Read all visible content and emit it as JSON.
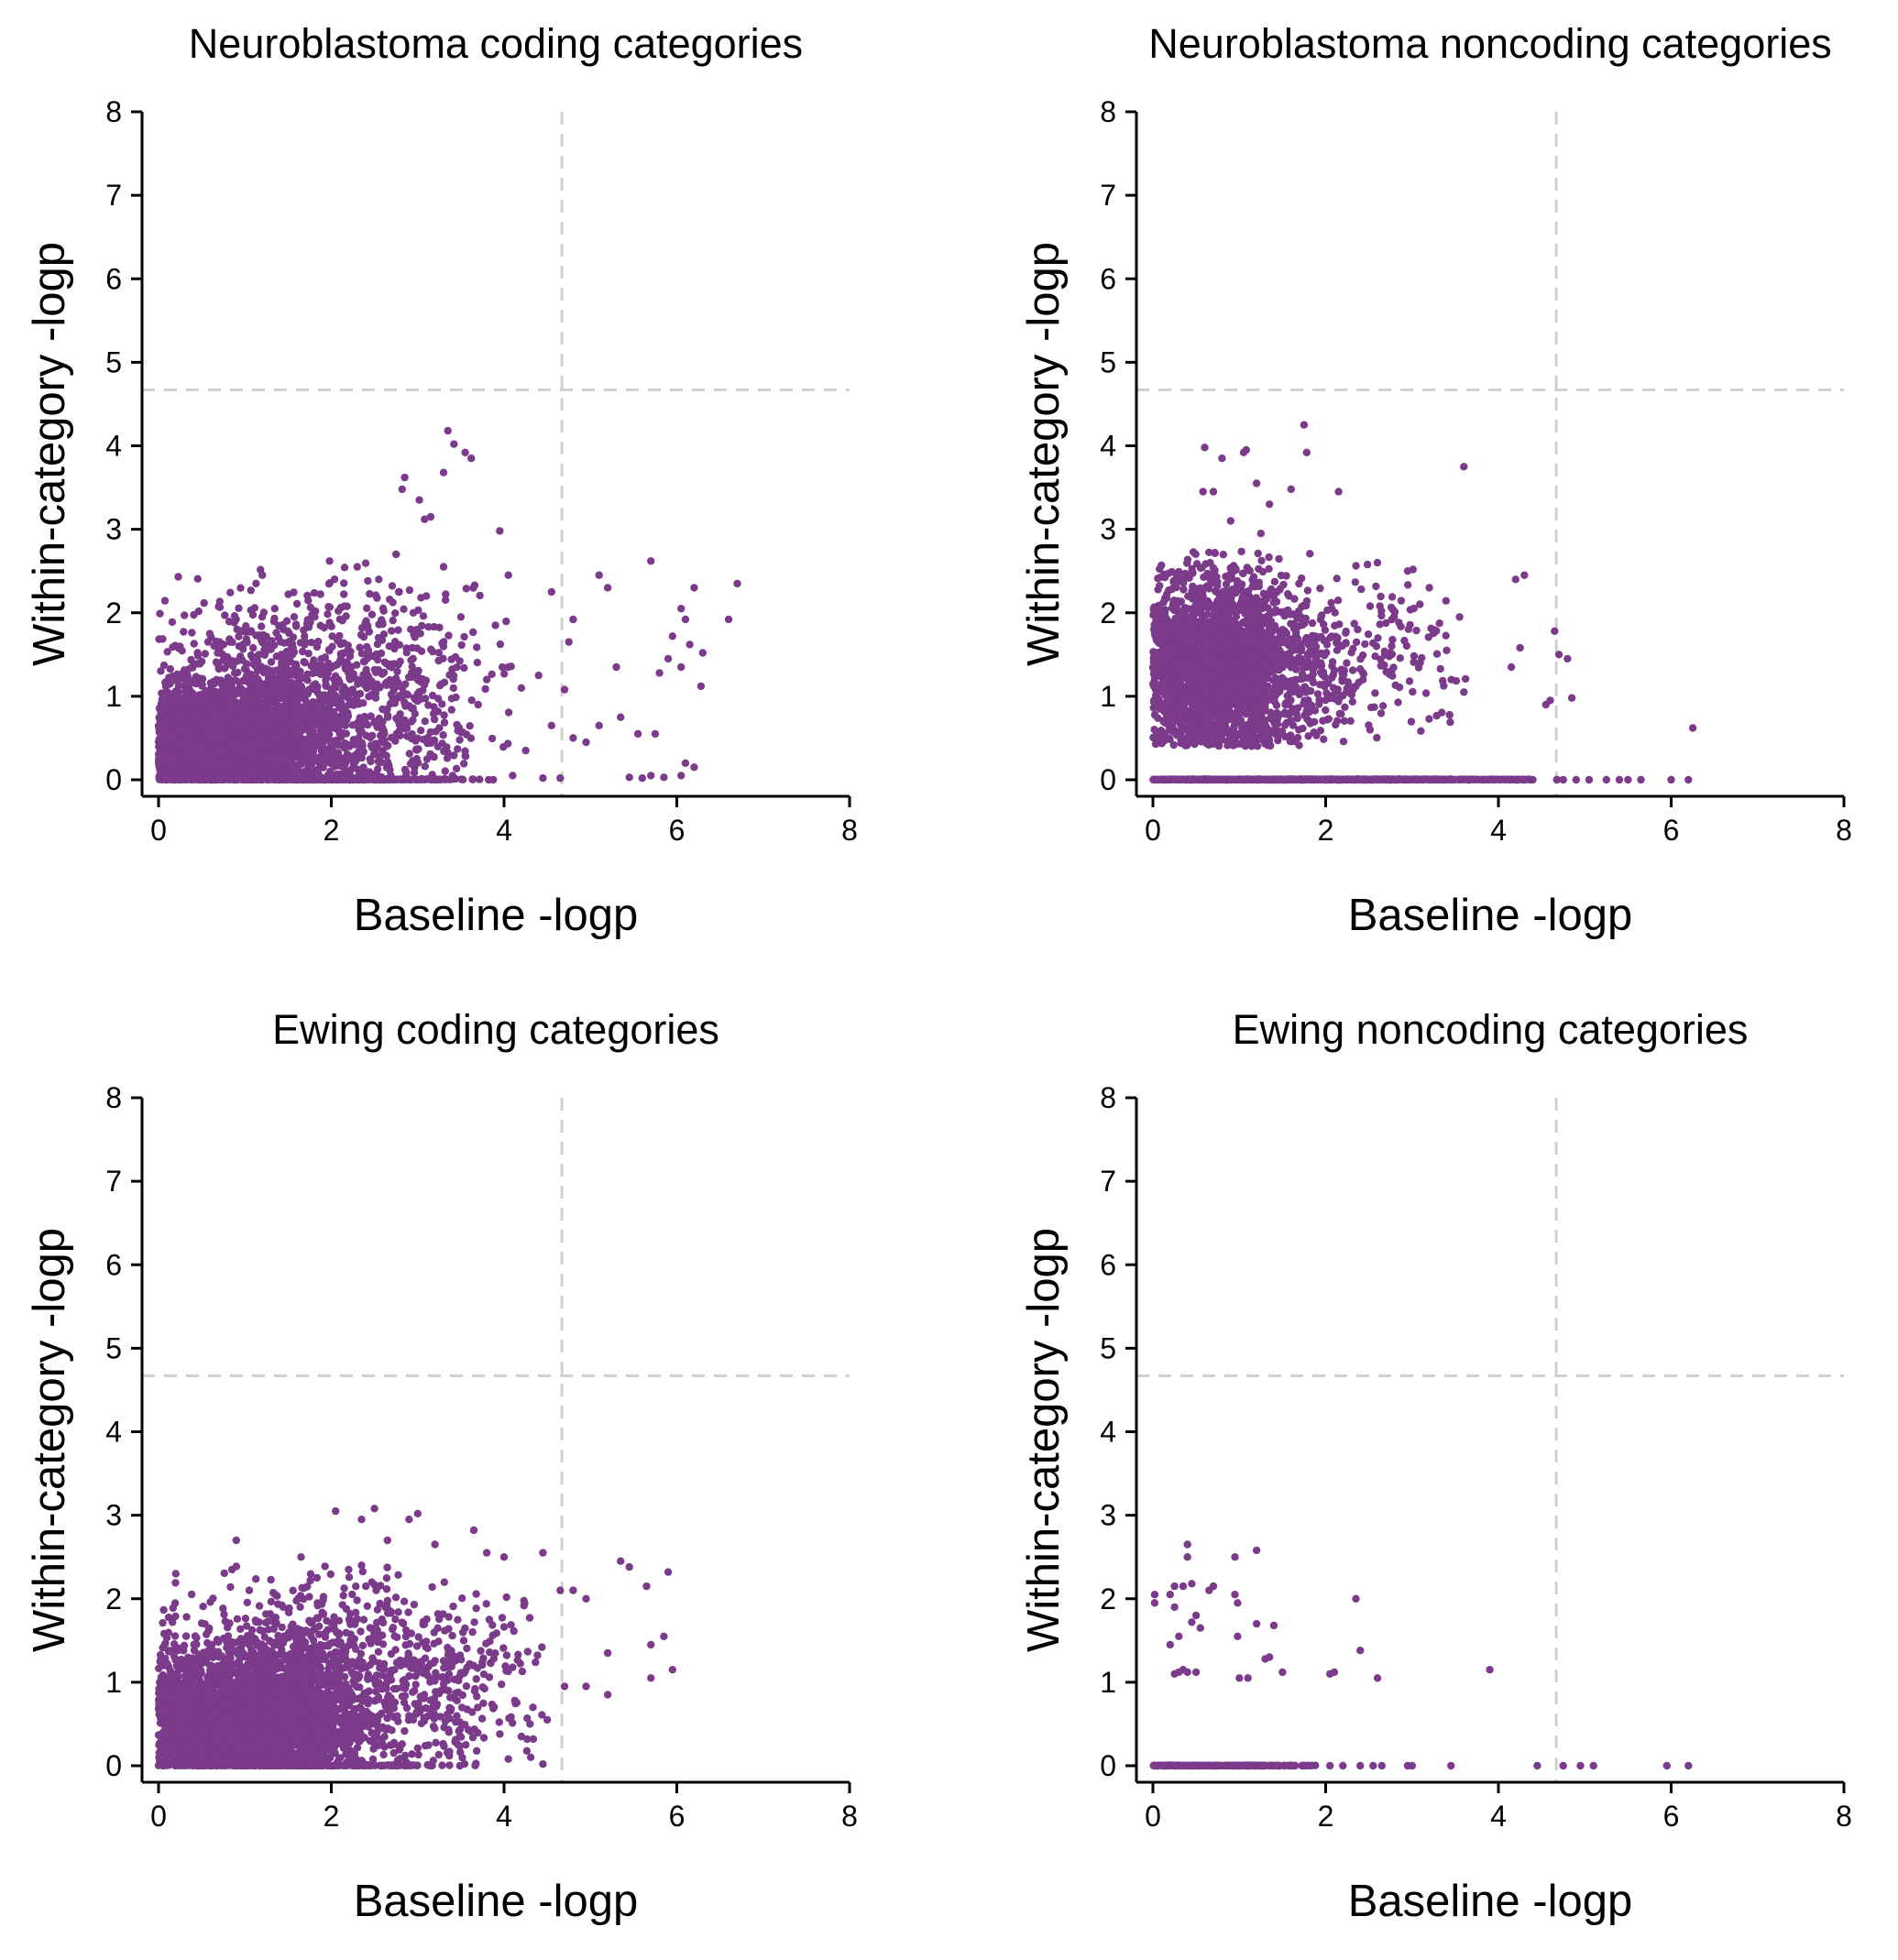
{
  "chart_data": [
    {
      "type": "scatter",
      "title": "Neuroblastoma coding categories",
      "xlabel": "Baseline -logp",
      "ylabel": "Within-category -logp",
      "xlim": [
        0,
        8
      ],
      "ylim": [
        0,
        8
      ],
      "xticks": [
        "0",
        "2",
        "4",
        "6",
        "8"
      ],
      "yticks": [
        "0",
        "1",
        "2",
        "3",
        "4",
        "5",
        "6",
        "7",
        "8"
      ],
      "threshold": 4.67,
      "color": "#7b3a8a",
      "grid": false,
      "points": [
        [
          3.35,
          4.18
        ],
        [
          3.42,
          4.02
        ],
        [
          3.55,
          3.92
        ],
        [
          3.62,
          3.85
        ],
        [
          2.85,
          3.62
        ],
        [
          2.82,
          3.48
        ],
        [
          3.3,
          3.68
        ],
        [
          3.15,
          3.15
        ],
        [
          3.02,
          3.35
        ],
        [
          3.08,
          3.12
        ],
        [
          3.95,
          2.98
        ],
        [
          4.05,
          2.45
        ],
        [
          5.1,
          2.45
        ],
        [
          5.2,
          2.3
        ],
        [
          5.7,
          2.62
        ],
        [
          6.05,
          2.05
        ],
        [
          6.1,
          1.92
        ],
        [
          6.15,
          1.62
        ],
        [
          5.95,
          1.72
        ],
        [
          6.3,
          1.52
        ],
        [
          6.05,
          1.35
        ],
        [
          5.8,
          1.28
        ],
        [
          5.9,
          1.45
        ],
        [
          6.2,
          2.3
        ],
        [
          6.7,
          2.35
        ],
        [
          6.6,
          1.92
        ],
        [
          6.28,
          1.12
        ],
        [
          4.55,
          2.25
        ],
        [
          4.75,
          1.65
        ],
        [
          4.8,
          1.92
        ],
        [
          4.4,
          1.25
        ],
        [
          4.7,
          1.08
        ],
        [
          5.3,
          1.35
        ],
        [
          5.55,
          0.55
        ],
        [
          5.75,
          0.55
        ],
        [
          5.7,
          0.05
        ],
        [
          5.85,
          0.03
        ],
        [
          6.1,
          0.2
        ],
        [
          6.2,
          0.15
        ],
        [
          6.05,
          0.05
        ],
        [
          5.6,
          0.02
        ],
        [
          4.8,
          0.5
        ],
        [
          4.95,
          0.45
        ],
        [
          4.45,
          0.02
        ],
        [
          4.65,
          0.02
        ],
        [
          4.1,
          0.05
        ],
        [
          4.25,
          0.35
        ],
        [
          5.1,
          0.65
        ],
        [
          5.35,
          0.75
        ],
        [
          5.45,
          0.03
        ],
        [
          4.55,
          0.65
        ],
        [
          4.2,
          1.1
        ],
        [
          3.9,
          1.85
        ],
        [
          4.05,
          1.35
        ],
        [
          3.8,
          1.2
        ],
        [
          3.7,
          0.9
        ],
        [
          3.3,
          2.55
        ],
        [
          3.1,
          2.2
        ],
        [
          3.5,
          1.95
        ],
        [
          2.75,
          2.7
        ],
        [
          2.55,
          2.4
        ],
        [
          2.95,
          2.0
        ],
        [
          2.3,
          2.55
        ],
        [
          1.98,
          2.62
        ]
      ],
      "clouds": [
        {
          "x": [
            0,
            3.0
          ],
          "y": [
            0,
            1.2
          ],
          "mean_x": 0.7,
          "mean_y": 0.45,
          "sd_x": 0.75,
          "sd_y": 0.35,
          "n": 2600
        },
        {
          "x": [
            0,
            3.2
          ],
          "y": [
            0.6,
            2.6
          ],
          "mean_x": 1.4,
          "mean_y": 1.2,
          "sd_x": 0.7,
          "sd_y": 0.5,
          "n": 700
        },
        {
          "x": [
            2.0,
            4.2
          ],
          "y": [
            0,
            2.5
          ],
          "mean_x": 2.9,
          "mean_y": 0.9,
          "sd_x": 0.55,
          "sd_y": 0.6,
          "n": 320
        },
        {
          "x": [
            0,
            4.0
          ],
          "y": [
            0,
            0.02
          ],
          "mean_x": 1.6,
          "mean_y": 0.0,
          "sd_x": 1.0,
          "sd_y": 0.005,
          "n": 500
        }
      ]
    },
    {
      "type": "scatter",
      "title": "Neuroblastoma noncoding categories",
      "xlabel": "Baseline -logp",
      "ylabel": "Within-category -logp",
      "xlim": [
        0,
        8
      ],
      "ylim": [
        0,
        8
      ],
      "xticks": [
        "0",
        "2",
        "4",
        "6",
        "8"
      ],
      "yticks": [
        "0",
        "1",
        "2",
        "3",
        "4",
        "5",
        "6",
        "7",
        "8"
      ],
      "threshold": 4.67,
      "color": "#7b3a8a",
      "grid": false,
      "points": [
        [
          1.75,
          4.25
        ],
        [
          1.78,
          3.92
        ],
        [
          0.6,
          3.98
        ],
        [
          0.8,
          3.85
        ],
        [
          1.05,
          3.92
        ],
        [
          1.08,
          3.95
        ],
        [
          0.7,
          3.45
        ],
        [
          0.58,
          3.45
        ],
        [
          1.2,
          3.55
        ],
        [
          1.35,
          3.3
        ],
        [
          1.6,
          3.48
        ],
        [
          2.15,
          3.45
        ],
        [
          1.25,
          2.95
        ],
        [
          0.9,
          3.1
        ],
        [
          3.6,
          3.75
        ],
        [
          4.2,
          2.4
        ],
        [
          4.3,
          2.45
        ],
        [
          4.65,
          1.78
        ],
        [
          4.55,
          0.9
        ],
        [
          4.6,
          0.95
        ],
        [
          4.85,
          0.98
        ],
        [
          4.8,
          1.45
        ],
        [
          4.7,
          1.5
        ],
        [
          4.25,
          1.58
        ],
        [
          4.15,
          1.35
        ],
        [
          6.25,
          0.62
        ],
        [
          3.55,
          1.95
        ],
        [
          3.6,
          1.05
        ],
        [
          3.4,
          1.55
        ],
        [
          3.2,
          2.3
        ],
        [
          2.95,
          2.5
        ],
        [
          2.6,
          2.6
        ],
        [
          5.25,
          0.0
        ],
        [
          5.5,
          0.0
        ],
        [
          5.65,
          0.0
        ],
        [
          4.9,
          0.0
        ],
        [
          5.05,
          0.0
        ],
        [
          6.0,
          0.0
        ],
        [
          6.2,
          0.0
        ],
        [
          5.4,
          0.0
        ],
        [
          4.75,
          0.0
        ]
      ],
      "clouds": [
        {
          "x": [
            0,
            2.4
          ],
          "y": [
            0.4,
            2.75
          ],
          "mean_x": 0.8,
          "mean_y": 1.35,
          "sd_x": 0.55,
          "sd_y": 0.55,
          "n": 2400
        },
        {
          "x": [
            1.6,
            3.7
          ],
          "y": [
            0.5,
            2.6
          ],
          "mean_x": 2.5,
          "mean_y": 1.4,
          "sd_x": 0.5,
          "sd_y": 0.5,
          "n": 170
        },
        {
          "x": [
            0,
            4.7
          ],
          "y": [
            0,
            0.01
          ],
          "mean_x": 1.9,
          "mean_y": 0.0,
          "sd_x": 1.2,
          "sd_y": 0.003,
          "n": 900
        }
      ]
    },
    {
      "type": "scatter",
      "title": "Ewing coding categories",
      "xlabel": "Baseline -logp",
      "ylabel": "Within-category -logp",
      "xlim": [
        0,
        8
      ],
      "ylim": [
        0,
        8
      ],
      "xticks": [
        "0",
        "2",
        "4",
        "6",
        "8"
      ],
      "yticks": [
        "0",
        "1",
        "2",
        "3",
        "4",
        "5",
        "6",
        "7",
        "8"
      ],
      "threshold": 4.67,
      "color": "#7b3a8a",
      "grid": false,
      "points": [
        [
          2.05,
          3.05
        ],
        [
          2.5,
          3.08
        ],
        [
          2.35,
          2.95
        ],
        [
          2.9,
          2.95
        ],
        [
          3.0,
          3.02
        ],
        [
          2.65,
          2.7
        ],
        [
          3.2,
          2.65
        ],
        [
          3.65,
          2.82
        ],
        [
          3.8,
          2.55
        ],
        [
          2.2,
          2.35
        ],
        [
          2.35,
          2.4
        ],
        [
          2.4,
          2.15
        ],
        [
          4.0,
          2.5
        ],
        [
          4.45,
          2.55
        ],
        [
          4.65,
          2.1
        ],
        [
          4.8,
          2.1
        ],
        [
          4.95,
          2.0
        ],
        [
          5.35,
          2.45
        ],
        [
          5.45,
          2.38
        ],
        [
          5.65,
          2.15
        ],
        [
          5.9,
          2.32
        ],
        [
          5.85,
          1.55
        ],
        [
          5.95,
          1.15
        ],
        [
          5.7,
          1.45
        ],
        [
          5.7,
          1.05
        ],
        [
          5.2,
          1.35
        ],
        [
          5.2,
          0.85
        ],
        [
          4.95,
          0.95
        ],
        [
          4.7,
          0.95
        ],
        [
          4.5,
          0.55
        ],
        [
          4.3,
          0.5
        ],
        [
          4.45,
          0.02
        ],
        [
          4.05,
          0.08
        ],
        [
          4.2,
          0.35
        ],
        [
          0.9,
          2.7
        ],
        [
          0.2,
          2.3
        ],
        [
          0.85,
          2.35
        ],
        [
          1.65,
          2.5
        ],
        [
          1.35,
          2.05
        ],
        [
          1.05,
          2.1
        ]
      ],
      "clouds": [
        {
          "x": [
            0,
            3.2
          ],
          "y": [
            0,
            1.5
          ],
          "mean_x": 1.0,
          "mean_y": 0.55,
          "sd_x": 0.8,
          "sd_y": 0.4,
          "n": 2800
        },
        {
          "x": [
            0,
            3.6
          ],
          "y": [
            0.5,
            2.4
          ],
          "mean_x": 1.6,
          "mean_y": 1.3,
          "sd_x": 0.8,
          "sd_y": 0.45,
          "n": 650
        },
        {
          "x": [
            2.5,
            4.6
          ],
          "y": [
            0,
            2.4
          ],
          "mean_x": 3.4,
          "mean_y": 1.0,
          "sd_x": 0.5,
          "sd_y": 0.55,
          "n": 260
        },
        {
          "x": [
            0,
            3.8
          ],
          "y": [
            0,
            0.02
          ],
          "mean_x": 1.4,
          "mean_y": 0.0,
          "sd_x": 0.9,
          "sd_y": 0.005,
          "n": 300
        }
      ]
    },
    {
      "type": "scatter",
      "title": "Ewing noncoding categories",
      "xlabel": "Baseline -logp",
      "ylabel": "Within-category -logp",
      "xlim": [
        0,
        8
      ],
      "ylim": [
        0,
        8
      ],
      "xticks": [
        "0",
        "2",
        "4",
        "6",
        "8"
      ],
      "yticks": [
        "0",
        "1",
        "2",
        "3",
        "4",
        "5",
        "6",
        "7",
        "8"
      ],
      "threshold": 4.67,
      "color": "#7b3a8a",
      "grid": false,
      "points": [
        [
          0.4,
          2.65
        ],
        [
          0.4,
          2.5
        ],
        [
          0.35,
          2.15
        ],
        [
          0.45,
          2.18
        ],
        [
          0.25,
          2.15
        ],
        [
          0.02,
          2.05
        ],
        [
          0.02,
          1.95
        ],
        [
          0.2,
          2.05
        ],
        [
          0.25,
          1.9
        ],
        [
          0.5,
          1.8
        ],
        [
          0.55,
          1.65
        ],
        [
          0.45,
          1.72
        ],
        [
          0.2,
          1.45
        ],
        [
          0.3,
          1.55
        ],
        [
          0.65,
          2.1
        ],
        [
          0.7,
          2.15
        ],
        [
          0.95,
          2.05
        ],
        [
          0.98,
          1.95
        ],
        [
          0.95,
          2.5
        ],
        [
          1.2,
          2.58
        ],
        [
          1.2,
          1.7
        ],
        [
          1.4,
          1.68
        ],
        [
          1.35,
          1.3
        ],
        [
          1.3,
          1.28
        ],
        [
          0.98,
          1.55
        ],
        [
          1.5,
          1.12
        ],
        [
          0.25,
          1.1
        ],
        [
          0.35,
          1.15
        ],
        [
          0.3,
          1.12
        ],
        [
          0.4,
          1.12
        ],
        [
          0.5,
          1.12
        ],
        [
          1.0,
          1.05
        ],
        [
          1.1,
          1.05
        ],
        [
          2.05,
          1.1
        ],
        [
          2.1,
          1.12
        ],
        [
          2.35,
          2.0
        ],
        [
          2.4,
          1.38
        ],
        [
          2.6,
          1.05
        ],
        [
          3.9,
          1.15
        ],
        [
          3.45,
          0.0
        ],
        [
          4.45,
          0.0
        ],
        [
          4.75,
          0.0
        ],
        [
          4.95,
          0.0
        ],
        [
          5.1,
          0.0
        ],
        [
          5.95,
          0.0
        ],
        [
          6.2,
          0.0
        ],
        [
          2.95,
          0.0
        ],
        [
          3.0,
          0.0
        ],
        [
          2.65,
          0.0
        ],
        [
          2.55,
          0.0
        ],
        [
          2.4,
          0.0
        ],
        [
          2.2,
          0.0
        ],
        [
          2.05,
          0.0
        ]
      ],
      "clouds": [
        {
          "x": [
            0,
            1.9
          ],
          "y": [
            0,
            0.01
          ],
          "mean_x": 0.9,
          "mean_y": 0.0,
          "sd_x": 0.6,
          "sd_y": 0.002,
          "n": 260
        }
      ]
    }
  ]
}
